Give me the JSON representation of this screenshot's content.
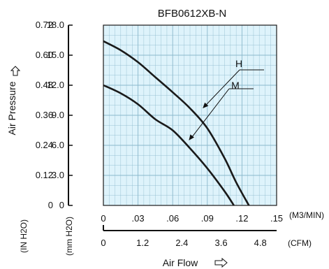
{
  "chart_data": {
    "type": "line",
    "title": "BFB0612XB-N",
    "ylabel_left": "Air Pressure",
    "xlabel": "Air Flow",
    "y_unit_inH2O": "(IN H2O)",
    "y_unit_mmH2O": "(mm H2O)",
    "x_unit_m3": "(M3/MIN)",
    "x_unit_cfm": "(CFM)",
    "ylim": [
      0,
      18.0
    ],
    "xlim": [
      0,
      0.15
    ],
    "y_ticks_mm": [
      "0",
      "3.0",
      "6.0",
      "9.0",
      "12.0",
      "15.0",
      "18.0"
    ],
    "y_ticks_in": [
      "0",
      "0.12",
      "0.24",
      "0.36",
      "0.48",
      "0.60",
      "0.72"
    ],
    "x_ticks_m3": [
      "0",
      ".03",
      ".06",
      ".09",
      ".12",
      ".15"
    ],
    "x_ticks_cfm": [
      "0",
      "1.2",
      "2.4",
      "3.6",
      "4.8"
    ],
    "grid": true,
    "background_color": "#def3fb",
    "grid_color": "#8ab8cc",
    "line_color": "#1a1a1a",
    "series": [
      {
        "name": "H",
        "x": [
          0,
          0.015,
          0.03,
          0.045,
          0.06,
          0.075,
          0.09,
          0.105,
          0.115,
          0.126
        ],
        "y": [
          16.4,
          15.5,
          14.3,
          12.8,
          11.3,
          9.7,
          7.7,
          4.7,
          2.3,
          0
        ]
      },
      {
        "name": "M",
        "x": [
          0,
          0.015,
          0.03,
          0.045,
          0.06,
          0.075,
          0.09,
          0.105,
          0.113
        ],
        "y": [
          12.0,
          11.2,
          10.1,
          8.6,
          7.5,
          5.7,
          3.7,
          1.4,
          0
        ]
      }
    ]
  }
}
